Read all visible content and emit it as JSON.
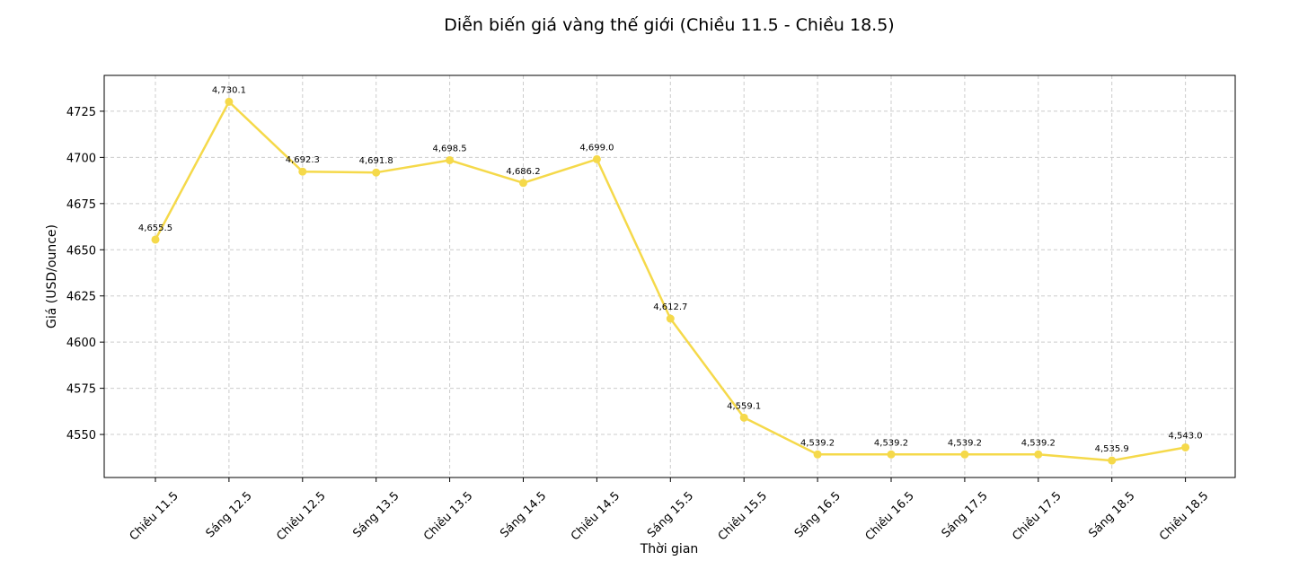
{
  "chart_data": {
    "type": "line",
    "title": "Diễn biến giá vàng thế giới (Chiều 11.5 - Chiều 18.5)",
    "xlabel": "Thời gian",
    "ylabel": "Giá (USD/ounce)",
    "categories": [
      "Chiều 11.5",
      "Sáng 12.5",
      "Chiều 12.5",
      "Sáng 13.5",
      "Chiều 13.5",
      "Sáng 14.5",
      "Chiều 14.5",
      "Sáng 15.5",
      "Chiều 15.5",
      "Sáng 16.5",
      "Chiều 16.5",
      "Sáng 17.5",
      "Chiều 17.5",
      "Sáng 18.5",
      "Chiều 18.5"
    ],
    "values": [
      4655.5,
      4730.1,
      4692.3,
      4691.8,
      4698.5,
      4686.2,
      4699.0,
      4612.7,
      4559.1,
      4539.2,
      4539.2,
      4539.2,
      4539.2,
      4535.9,
      4543.0
    ],
    "data_labels": [
      "4,655.5",
      "4,730.1",
      "4,692.3",
      "4,691.8",
      "4,698.5",
      "4,686.2",
      "4,699.0",
      "4,612.7",
      "4,559.1",
      "4,539.2",
      "4,539.2",
      "4,539.2",
      "4,539.2",
      "4,535.9",
      "4,543.0"
    ],
    "yticks": [
      4550,
      4575,
      4600,
      4625,
      4650,
      4675,
      4700,
      4725
    ],
    "ylim": [
      4526.7,
      4744.4
    ],
    "grid": true,
    "line_color": "#f5d94a"
  }
}
